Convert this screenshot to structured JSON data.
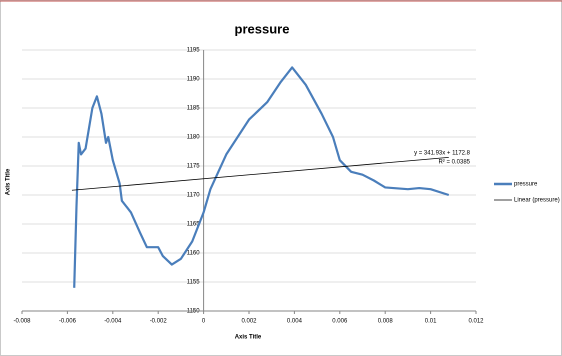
{
  "chart_data": {
    "type": "line",
    "title": "pressure",
    "x_label": "Axis Title",
    "y_label": "Axis Title",
    "xlim": [
      -0.008,
      0.012
    ],
    "xticks": [
      -0.008,
      -0.006,
      -0.004,
      -0.002,
      0,
      0.002,
      0.004,
      0.006,
      0.008,
      0.01,
      0.012
    ],
    "ylim": [
      1150,
      1195
    ],
    "yticks": [
      1150,
      1155,
      1160,
      1165,
      1170,
      1175,
      1180,
      1185,
      1190,
      1195
    ],
    "grid": true,
    "legend": "right",
    "series": [
      {
        "name": "pressure",
        "color": "#4a7ebb",
        "x": [
          -0.0057,
          -0.0056,
          -0.0055,
          -0.0054,
          -0.0052,
          -0.0049,
          -0.0047,
          -0.0045,
          -0.0043,
          -0.0042,
          -0.004,
          -0.0037,
          -0.0036,
          -0.0032,
          -0.0028,
          -0.0025,
          -0.002,
          -0.0018,
          -0.0014,
          -0.001,
          -0.0005,
          0,
          0.0003,
          0.001,
          0.0015,
          0.002,
          0.0028,
          0.0034,
          0.0039,
          0.004,
          0.0045,
          0.0052,
          0.0057,
          0.006,
          0.0065,
          0.007,
          0.0075,
          0.008,
          0.009,
          0.0095,
          0.01,
          0.0108
        ],
        "values": [
          1154,
          1168,
          1179,
          1177,
          1178,
          1185,
          1187,
          1184,
          1179,
          1180,
          1176,
          1172,
          1169,
          1167,
          1163.5,
          1161,
          1161,
          1159.5,
          1158,
          1159,
          1162,
          1167,
          1171,
          1177,
          1180,
          1183,
          1186,
          1189.5,
          1192,
          1191.5,
          1189,
          1184,
          1180,
          1176,
          1174,
          1173.5,
          1172.5,
          1171.3,
          1171,
          1171.2,
          1171,
          1170
        ]
      },
      {
        "name": "Linear (pressure)",
        "color": "#000000",
        "x": [
          -0.0058,
          0.0108
        ],
        "values": [
          1170.817,
          1176.493
        ]
      }
    ],
    "annotations": [
      "y = 341.93x + 1172.8",
      "R² = 0.0385"
    ]
  }
}
